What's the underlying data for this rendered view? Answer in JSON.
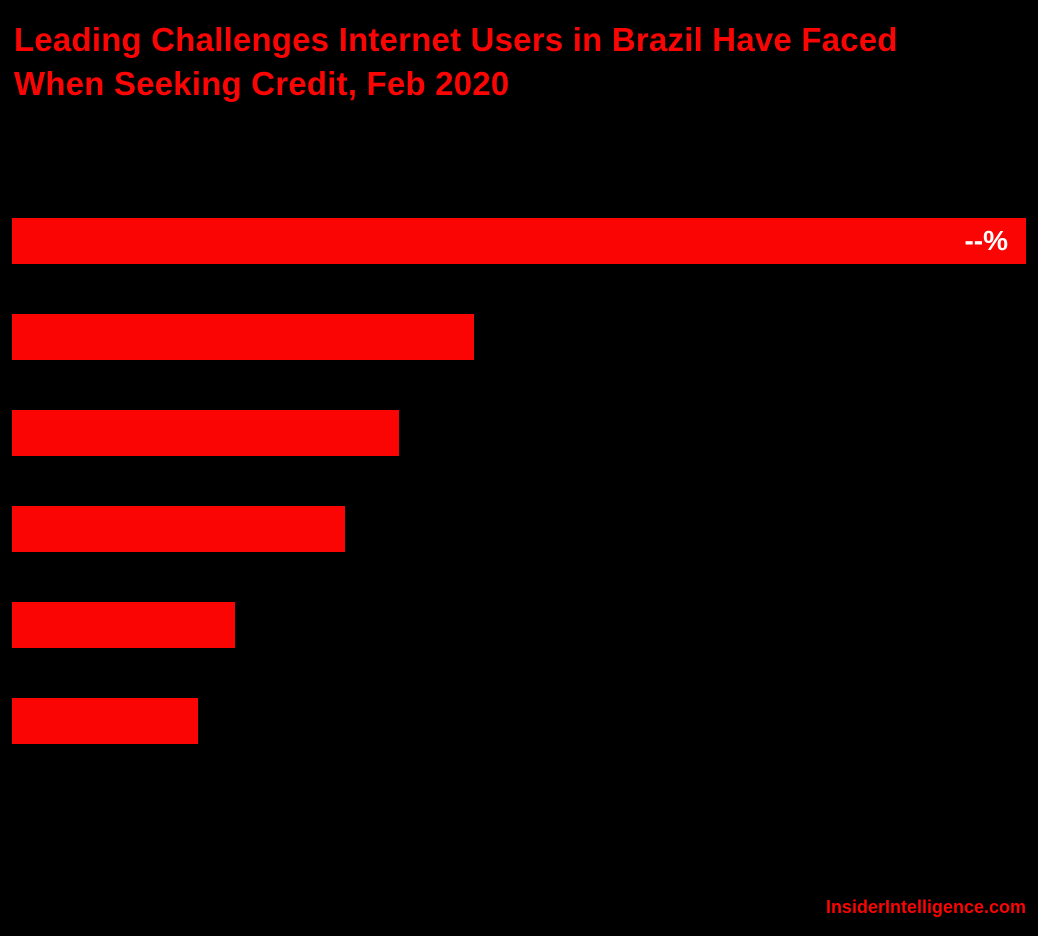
{
  "title": "Leading Challenges Internet Users in Brazil Have Faced When Seeking Credit, Feb 2020",
  "footer": {
    "brand": "InsiderIntelligence.com"
  },
  "colors": {
    "background": "#000000",
    "bar": "#fb0404",
    "title": "#fb0404",
    "value_label": "#ffffff"
  },
  "chart_data": {
    "type": "bar",
    "orientation": "horizontal",
    "title": "Leading Challenges Internet Users in Brazil Have Faced When Seeking Credit, Feb 2020",
    "legend": "none",
    "grid": false,
    "categories": [
      "",
      "",
      "",
      "",
      "",
      ""
    ],
    "bars": [
      {
        "width_pct": 100.0,
        "value_label": "--%"
      },
      {
        "width_pct": 45.6,
        "value_label": ""
      },
      {
        "width_pct": 38.2,
        "value_label": ""
      },
      {
        "width_pct": 32.8,
        "value_label": ""
      },
      {
        "width_pct": 22.0,
        "value_label": ""
      },
      {
        "width_pct": 18.3,
        "value_label": ""
      }
    ]
  }
}
